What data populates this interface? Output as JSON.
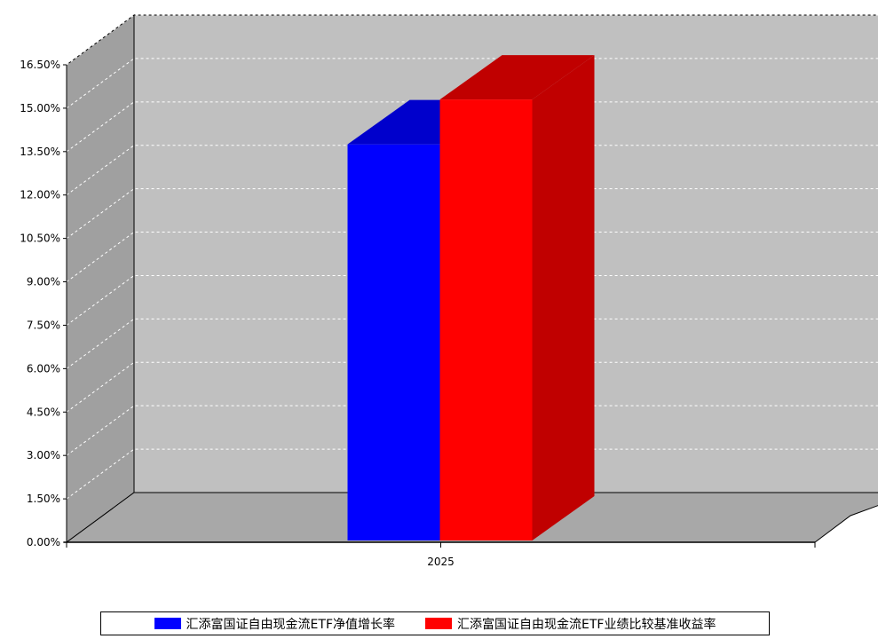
{
  "chart_data": {
    "type": "bar",
    "title": "",
    "xlabel": "",
    "ylabel": "",
    "categories": [
      "2025"
    ],
    "series": [
      {
        "name": "汇添富国证自由现金流ETF净值增长率",
        "values": [
          13.75
        ]
      },
      {
        "name": "汇添富国证自由现金流ETF业绩比较基准收益率",
        "values": [
          15.3
        ]
      }
    ],
    "ylim": [
      0,
      16.5
    ],
    "yticks": [
      "0.00%",
      "1.50%",
      "3.00%",
      "4.50%",
      "6.00%",
      "7.50%",
      "9.00%",
      "10.50%",
      "12.00%",
      "13.50%",
      "15.00%",
      "16.50%"
    ],
    "ytick_values": [
      0,
      1.5,
      3,
      4.5,
      6,
      7.5,
      9,
      10.5,
      12,
      13.5,
      15,
      16.5
    ],
    "grid": true,
    "legend_position": "bottom",
    "three_d": true
  },
  "colors": {
    "series_1": "#0000ff",
    "series_1_top": "#0000cc",
    "series_2": "#ff0000",
    "series_2_side": "#c00000",
    "back_wall": "#c0c0c0",
    "side_wall": "#a0a0a0",
    "floor": "#a8a8a8",
    "gridline": "#ffffff"
  }
}
